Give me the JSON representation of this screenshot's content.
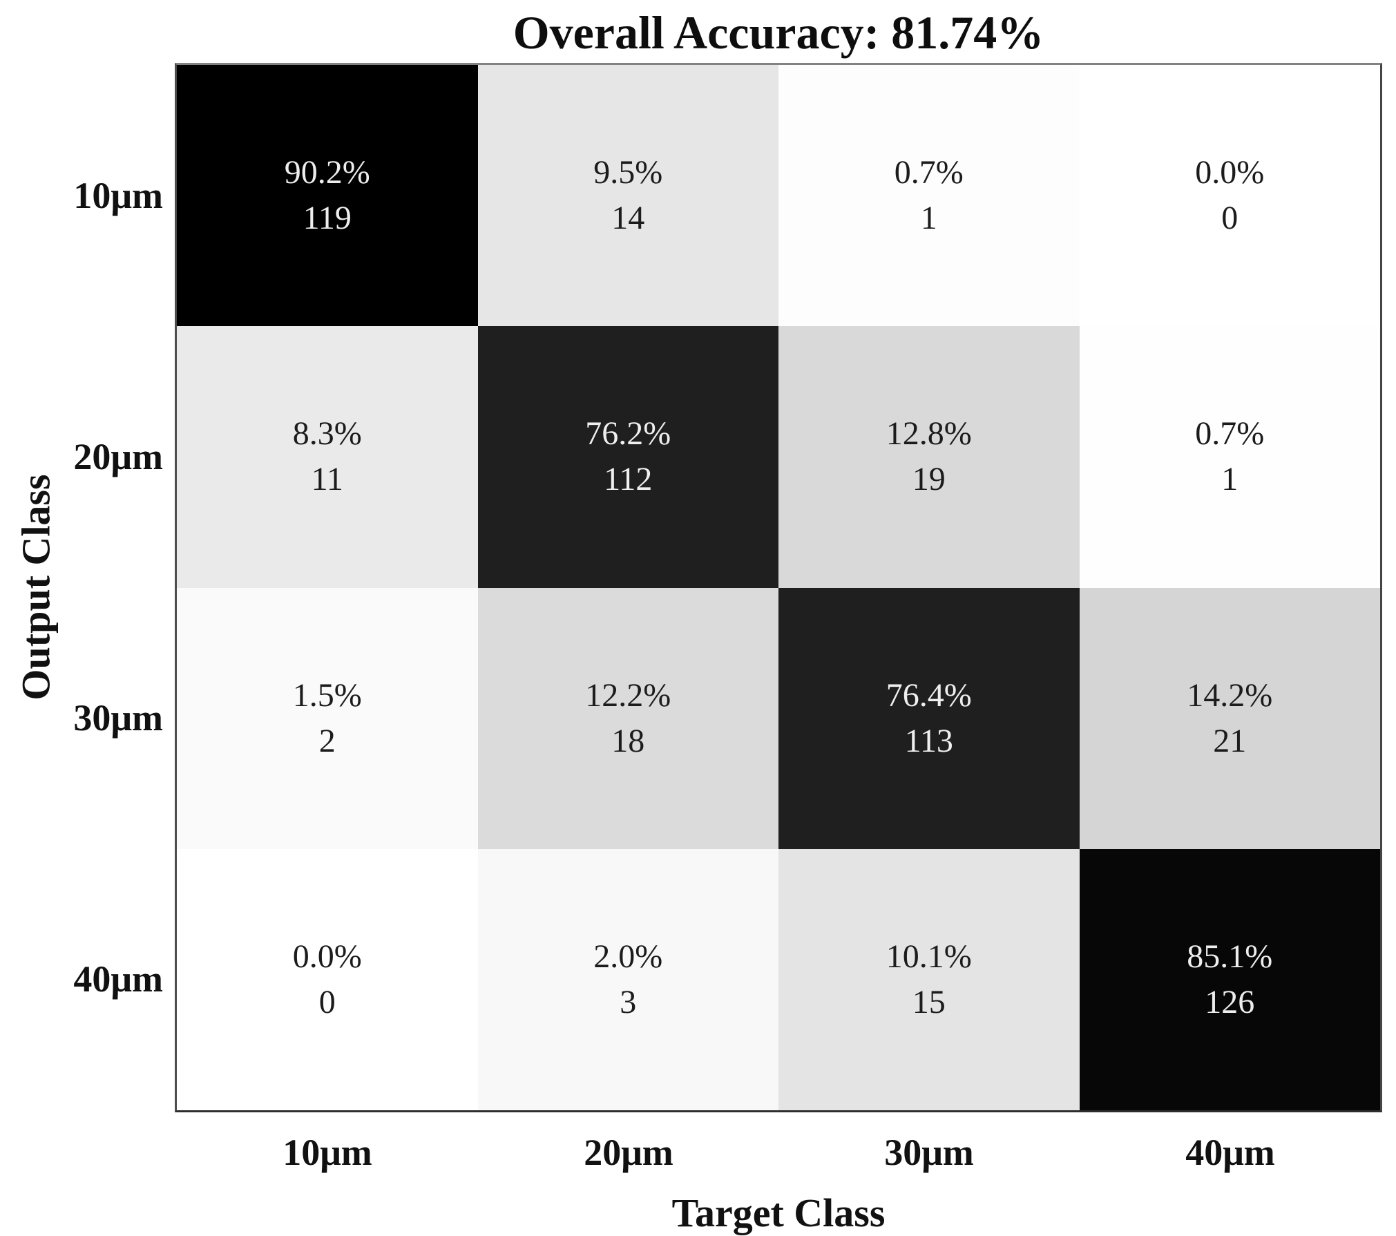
{
  "figure": {
    "title": "Overall Accuracy: 81.74%",
    "x_axis_label": "Target Class",
    "y_axis_label": "Output Class"
  },
  "chart_data": {
    "type": "heatmap",
    "subtype": "confusion-matrix",
    "title": "Overall Accuracy: 81.74%",
    "overall_accuracy_pct": 81.74,
    "xlabel": "Target Class",
    "ylabel": "Output Class",
    "categories": [
      "10μm",
      "20μm",
      "30μm",
      "40μm"
    ],
    "row_percentages": [
      [
        90.2,
        9.5,
        0.7,
        0.0
      ],
      [
        8.3,
        76.2,
        12.8,
        0.7
      ],
      [
        1.5,
        12.2,
        76.4,
        14.2
      ],
      [
        0.0,
        2.0,
        10.1,
        85.1
      ]
    ],
    "row_counts": [
      [
        119,
        14,
        1,
        0
      ],
      [
        11,
        112,
        19,
        1
      ],
      [
        2,
        18,
        113,
        21
      ],
      [
        0,
        3,
        15,
        126
      ]
    ],
    "colormap": "white-to-black by percentage",
    "colors": {
      "dark_cell_text": "#ededed",
      "light_cell_text": "#1c1c1c",
      "border": "#4d4d4d"
    },
    "legend_position": "none",
    "grid": false,
    "cells": [
      [
        {
          "pct_label": "90.2%",
          "count": 119,
          "bg": "#000000",
          "fg": "#ededed"
        },
        {
          "pct_label": "9.5%",
          "count": 14,
          "bg": "#e6e6e6",
          "fg": "#1c1c1c"
        },
        {
          "pct_label": "0.7%",
          "count": 1,
          "bg": "#fdfdfd",
          "fg": "#1c1c1c"
        },
        {
          "pct_label": "0.0%",
          "count": 0,
          "bg": "#ffffff",
          "fg": "#1c1c1c"
        }
      ],
      [
        {
          "pct_label": "8.3%",
          "count": 11,
          "bg": "#eaeaea",
          "fg": "#1c1c1c"
        },
        {
          "pct_label": "76.2%",
          "count": 112,
          "bg": "#1f1f1f",
          "fg": "#efefef"
        },
        {
          "pct_label": "12.8%",
          "count": 19,
          "bg": "#d9d9d9",
          "fg": "#1c1c1c"
        },
        {
          "pct_label": "0.7%",
          "count": 1,
          "bg": "#fefefe",
          "fg": "#1c1c1c"
        }
      ],
      [
        {
          "pct_label": "1.5%",
          "count": 2,
          "bg": "#fafafa",
          "fg": "#1c1c1c"
        },
        {
          "pct_label": "12.2%",
          "count": 18,
          "bg": "#dbdbdb",
          "fg": "#1c1c1c"
        },
        {
          "pct_label": "76.4%",
          "count": 113,
          "bg": "#1f1f1f",
          "fg": "#efefef"
        },
        {
          "pct_label": "14.2%",
          "count": 21,
          "bg": "#d5d5d5",
          "fg": "#1c1c1c"
        }
      ],
      [
        {
          "pct_label": "0.0%",
          "count": 0,
          "bg": "#ffffff",
          "fg": "#1c1c1c"
        },
        {
          "pct_label": "2.0%",
          "count": 3,
          "bg": "#f8f8f8",
          "fg": "#1c1c1c"
        },
        {
          "pct_label": "10.1%",
          "count": 15,
          "bg": "#e4e4e4",
          "fg": "#1c1c1c"
        },
        {
          "pct_label": "85.1%",
          "count": 126,
          "bg": "#070707",
          "fg": "#ededed"
        }
      ]
    ]
  }
}
